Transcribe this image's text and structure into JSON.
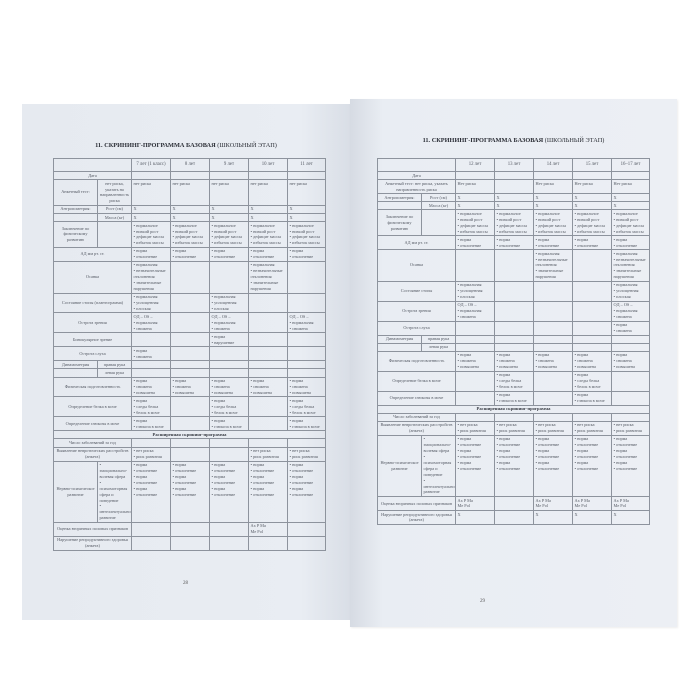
{
  "left_page": {
    "title_bold": "11. СКРИНИНГ-ПРОГРАММА БАЗОВАЯ",
    "title_rest": " (ШКОЛЬНЫЙ ЭТАП)",
    "page_number": "28",
    "columns": [
      "7 лет (1 класс)",
      "8 лет",
      "9 лет",
      "10 лет",
      "11 лет"
    ],
    "rows": [
      {
        "label": "Дата",
        "cells": [
          "",
          "",
          "",
          "",
          ""
        ]
      },
      {
        "label": "Анкетный тест:",
        "sub": "нет риска, указать на направленность риска",
        "cells": [
          "нет риска",
          "нет риска",
          "нет риска",
          "нет риска",
          "нет риска"
        ]
      },
      {
        "label": "Антропометрия:",
        "sub": "Рост (см)",
        "cells": [
          "X",
          "X",
          "X",
          "X",
          "X"
        ]
      },
      {
        "label": "",
        "sub": "Масса (кг)",
        "cells": [
          "X",
          "X",
          "X",
          "X",
          "X"
        ]
      },
      {
        "label": "Заключение по физическому развитию",
        "sub": "",
        "cells": [
          "• нормальное\n• низкий рост\n• дефицит массы\n• избыток массы",
          "• нормальное\n• низкий рост\n• дефицит массы\n• избыток массы",
          "• нормальное\n• низкий рост\n• дефицит массы\n• избыток массы",
          "• нормальное\n• низкий рост\n• дефицит массы\n• избыток массы",
          "• нормальное\n• низкий рост\n• дефицит массы\n• избыток массы"
        ]
      },
      {
        "label": "АД мм рт. ст.",
        "cells": [
          "• норма\n• отклонение",
          "• норма\n• отклонение",
          "• норма\n• отклонение",
          "• норма\n• отклонение",
          "• норма\n• отклонение"
        ]
      },
      {
        "label": "Осанка",
        "cells": [
          "• нормальная\n• незначительные отклонения\n• значительные нарушения",
          "",
          "",
          "• нормальная\n• незначительные отклонения\n• значительные нарушения",
          ""
        ]
      },
      {
        "label": "Состояние стопы (плантограмма)",
        "cells": [
          "• нормальная\n• уплощенная\n• плоская",
          "",
          "• нормальная\n• уплощенная\n• плоская",
          "",
          ""
        ]
      },
      {
        "label": "Острота зрения",
        "cells": [
          "OД – OS –\n• нормальная\n• снижена",
          "",
          "OД – OS –\n• нормальная\n• снижена",
          "",
          "OД – OS –\n• нормальная\n• снижена"
        ]
      },
      {
        "label": "Бинокулярное зрение",
        "cells": [
          "",
          "",
          "• норма\n• нарушение",
          "",
          ""
        ]
      },
      {
        "label": "Острота слуха",
        "cells": [
          "• норма\n• снижена",
          "",
          "",
          "",
          ""
        ]
      },
      {
        "label": "Динамометрия",
        "sub": "правая рука",
        "cells": [
          "",
          "",
          "",
          "",
          ""
        ]
      },
      {
        "label": "",
        "sub": "левая рука",
        "cells": [
          "",
          "",
          "",
          "",
          ""
        ]
      },
      {
        "label": "Физическая подготовленность",
        "cells": [
          "• норма\n• снижена\n• повышена",
          "• норма\n• снижена\n• повышена",
          "• норма\n• снижена\n• повышена",
          "• норма\n• снижена\n• повышена",
          "• норма\n• снижена\n• повышена"
        ]
      },
      {
        "label": "Определение белка в моче",
        "cells": [
          "• норма\n• следы белка\n• белок в моче",
          "",
          "• норма\n• следы белка\n• белок в моче",
          "",
          "• норма\n• следы белка\n• белок в моче"
        ]
      },
      {
        "label": "Определение глюкозы в моче",
        "cells": [
          "• норма\n• глюкоза в моче",
          "",
          "• норма\n• глюкоза в моче",
          "",
          "• норма\n• глюкоза в моче"
        ]
      },
      {
        "section": "Расширенная скрининг-программа"
      },
      {
        "label": "Число заболеваний за год",
        "cells": [
          "",
          "",
          "",
          "",
          ""
        ]
      },
      {
        "label": "Выявление невротических расстройств (анкета)",
        "cells": [
          "• нет риска\n• риск развития",
          "",
          "",
          "• нет риска\n• риск развития",
          "• нет риска\n• риск развития"
        ]
      },
      {
        "label": "Нервно-психическое развитие",
        "sub": "• эмоционально-волевая сфера\n• психомоторная сфера и поведение\n• интеллектуальное развитие",
        "cells": [
          "• норма\n• отклонение\n• норма\n• отклонение\n• норма\n• отклонение",
          "• норма\n• отклонение\n• норма\n• отклонение\n• норма\n• отклонение",
          "• норма\n• отклонение\n• норма\n• отклонение\n• норма\n• отклонение",
          "• норма\n• отклонение\n• норма\n• отклонение\n• норма\n• отклонение",
          "• норма\n• отклонение\n• норма\n• отклонение\n• норма\n• отклонение"
        ]
      },
      {
        "label": "Оценка вторичных половых признаков",
        "cells": [
          "",
          "",
          "",
          "Ax  P  Ma\nMe  Pol",
          ""
        ]
      },
      {
        "label": "Нарушение репродуктивного здоровья (анкета)",
        "cells": [
          "",
          "",
          "",
          "",
          ""
        ]
      }
    ]
  },
  "right_page": {
    "title_bold": "11. СКРИНИНГ-ПРОГРАММА БАЗОВАЯ",
    "title_rest": " (ШКОЛЬНЫЙ ЭТАП)",
    "page_number": "29",
    "columns": [
      "12 лет",
      "13 лет",
      "14 лет",
      "15 лет",
      "16–17 лет"
    ],
    "rows": [
      {
        "label": "Дата",
        "cells": [
          "",
          "",
          "",
          "",
          ""
        ]
      },
      {
        "label": "Анкетный тест: нет риска, указать направленность риска",
        "cells": [
          "Нет риска",
          "",
          "Нет риска",
          "Нет риска",
          "Нет риска"
        ]
      },
      {
        "label": "Антропометрия:",
        "sub": "Рост (см)",
        "cells": [
          "X",
          "X",
          "X",
          "X",
          "X"
        ]
      },
      {
        "label": "",
        "sub": "Масса (кг)",
        "cells": [
          "X",
          "X",
          "X",
          "X",
          "X"
        ]
      },
      {
        "label": "Заключение по физическому развитию",
        "sub": "",
        "cells": [
          "• нормальное\n• низкий рост\n• дефицит массы\n• избыток массы",
          "• нормальное\n• низкий рост\n• дефицит массы\n• избыток массы",
          "• нормальное\n• низкий рост\n• дефицит массы\n• избыток массы",
          "• нормальное\n• низкий рост\n• дефицит массы\n• избыток массы",
          "• нормальное\n• низкий рост\n• дефицит массы\n• избыток массы"
        ]
      },
      {
        "label": "АД мм рт. ст.",
        "cells": [
          "• норма\n• отклонение",
          "• норма\n• отклонение",
          "• норма\n• отклонение",
          "• норма\n• отклонение",
          "• норма\n• отклонение"
        ]
      },
      {
        "label": "Осанка",
        "cells": [
          "",
          "",
          "• нормальная\n• незначительные отклонения\n• значительные нарушения",
          "",
          "• нормальная\n• незначительные отклонения\n• значительные нарушения"
        ]
      },
      {
        "label": "Состояние стопы",
        "cells": [
          "• нормальная\n• уплощенная\n• плоская",
          "",
          "",
          "",
          "• нормальная\n• уплощенная\n• плоская"
        ]
      },
      {
        "label": "Острота зрения",
        "cells": [
          "OД – OS –\n• нормальная\n• снижена",
          "",
          "",
          "",
          "OД – OS –\n• нормальная\n• снижена"
        ]
      },
      {
        "label": "Острота слуха",
        "cells": [
          "",
          "",
          "",
          "",
          "• норма\n• снижена"
        ]
      },
      {
        "label": "Динамометрия",
        "sub": "правая рука",
        "cells": [
          "",
          "",
          "",
          "",
          ""
        ]
      },
      {
        "label": "",
        "sub": "левая рука",
        "cells": [
          "",
          "",
          "",
          "",
          ""
        ]
      },
      {
        "label": "Физическая подготовленность",
        "cells": [
          "• норма\n• снижена\n• повышена",
          "• норма\n• снижена\n• повышена",
          "• норма\n• снижена\n• повышена",
          "• норма\n• снижена\n• повышена",
          "• норма\n• снижена\n• повышена"
        ]
      },
      {
        "label": "Определение белка в моче",
        "cells": [
          "",
          "• норма\n• следы белка\n• белок в моче",
          "",
          "• норма\n• следы белка\n• белок в моче",
          ""
        ]
      },
      {
        "label": "Определение глюкозы в моче",
        "cells": [
          "",
          "• норма\n• глюкоза в моче",
          "",
          "• норма\n• глюкоза в моче",
          ""
        ]
      },
      {
        "section": "Расширенная скрининг-программа"
      },
      {
        "label": "Число заболеваний за год",
        "cells": [
          "",
          "",
          "",
          "",
          ""
        ]
      },
      {
        "label": "Выявление невротических расстройств (анкета)",
        "cells": [
          "• нет риска\n• риск развития",
          "• нет риска\n• риск развития",
          "• нет риска\n• риск развития",
          "• нет риска\n• риск развития",
          "• нет риска\n• риск развития"
        ]
      },
      {
        "label": "Нервно-психическое развитие",
        "sub": "• эмоционально-волевая сфера\n• психомоторная сфера и поведение\n• интеллектуальное развитие",
        "cells": [
          "• норма\n• отклонение\n• норма\n• отклонение\n• норма\n• отклонение",
          "• норма\n• отклонение\n• норма\n• отклонение\n• норма\n• отклонение",
          "• норма\n• отклонение\n• норма\n• отклонение\n• норма\n• отклонение",
          "• норма\n• отклонение\n• норма\n• отклонение\n• норма\n• отклонение",
          "• норма\n• отклонение\n• норма\n• отклонение\n• норма\n• отклонение"
        ]
      },
      {
        "label": "Оценка вторичных половых признаков",
        "cells": [
          "Ax  P  Ma\nMe  Pol",
          "",
          "Ax  P  Ma\nMe  Pol",
          "Ax  P  Ma\nMe  Pol",
          "Ax  P  Ma\nMe  Pol"
        ]
      },
      {
        "label": "Нарушение репродуктивного здоровья (анкета)",
        "cells": [
          "X",
          "",
          "X",
          "X",
          "X"
        ]
      }
    ]
  }
}
